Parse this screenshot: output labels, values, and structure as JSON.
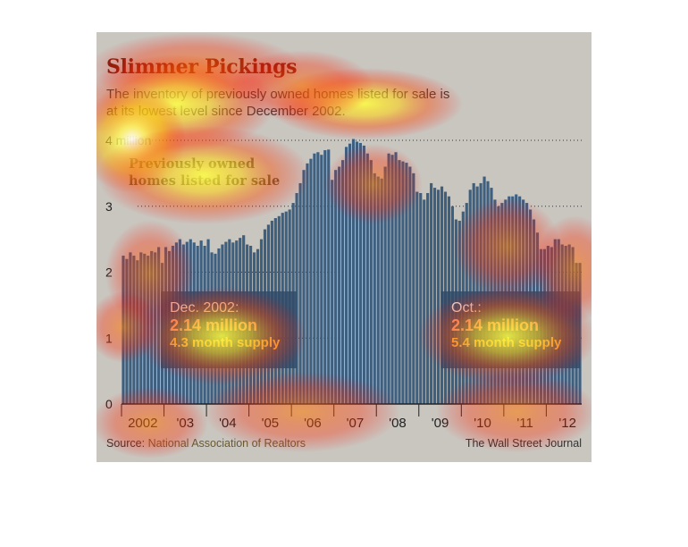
{
  "header": {
    "title": "Slimmer Pickings",
    "subtitle": "The inventory of previously owned homes listed for sale is at its lowest level since December 2002."
  },
  "chart_data": {
    "type": "bar",
    "ylim": [
      0,
      4
    ],
    "yticks": [
      0,
      1,
      2,
      3,
      4
    ],
    "ytick_labels": [
      "0",
      "1",
      "2",
      "3",
      "4 million"
    ],
    "x_labels": [
      "2002",
      "'03",
      "'04",
      "'05",
      "'06",
      "'07",
      "'08",
      "'09",
      "'10",
      "'11",
      "'12"
    ],
    "series_label": "Previously owned homes listed for sale",
    "start_month": "2002-01",
    "end_month": "2012-10",
    "values": [
      2.25,
      2.2,
      2.3,
      2.25,
      2.18,
      2.3,
      2.28,
      2.25,
      2.32,
      2.3,
      2.38,
      2.14,
      2.38,
      2.32,
      2.4,
      2.45,
      2.5,
      2.42,
      2.46,
      2.5,
      2.45,
      2.4,
      2.48,
      2.4,
      2.5,
      2.3,
      2.28,
      2.36,
      2.42,
      2.46,
      2.5,
      2.45,
      2.48,
      2.52,
      2.56,
      2.42,
      2.4,
      2.3,
      2.35,
      2.5,
      2.65,
      2.72,
      2.78,
      2.82,
      2.85,
      2.9,
      2.92,
      2.95,
      3.05,
      3.2,
      3.35,
      3.55,
      3.65,
      3.72,
      3.8,
      3.82,
      3.78,
      3.85,
      3.86,
      3.4,
      3.55,
      3.6,
      3.7,
      3.9,
      3.95,
      4.02,
      3.98,
      3.96,
      3.92,
      3.8,
      3.7,
      3.5,
      3.45,
      3.42,
      3.6,
      3.8,
      3.78,
      3.82,
      3.7,
      3.68,
      3.66,
      3.6,
      3.5,
      3.22,
      3.2,
      3.1,
      3.2,
      3.35,
      3.28,
      3.25,
      3.3,
      3.22,
      3.15,
      3.0,
      2.8,
      2.78,
      2.92,
      3.05,
      3.25,
      3.35,
      3.3,
      3.35,
      3.45,
      3.38,
      3.28,
      3.1,
      3.0,
      3.05,
      3.1,
      3.15,
      3.15,
      3.18,
      3.15,
      3.1,
      3.05,
      2.95,
      2.8,
      2.6,
      2.35,
      2.35,
      2.4,
      2.38,
      2.5,
      2.5,
      2.42,
      2.4,
      2.42,
      2.38,
      2.14,
      2.14
    ],
    "annotations": [
      {
        "label": "Dec. 2002:",
        "value": "2.14 million",
        "supply": "4.3 month supply"
      },
      {
        "label": "Oct.:",
        "value": "2.14 million",
        "supply": "5.4 month supply"
      }
    ],
    "grid": "dotted horizontal at each y tick"
  },
  "footer": {
    "source_prefix": "Source: ",
    "source_org": "National Association of Realtors",
    "brand": "The Wall Street Journal"
  },
  "colors": {
    "panel_bg": "#c9c6bf",
    "bar": "#3d5f80",
    "bar_stroke": "#ffffff",
    "title": "#7a1f10",
    "callout": "#2f4a68",
    "callout_value": "#f7a98a",
    "callout_supply": "#f2c15a"
  }
}
